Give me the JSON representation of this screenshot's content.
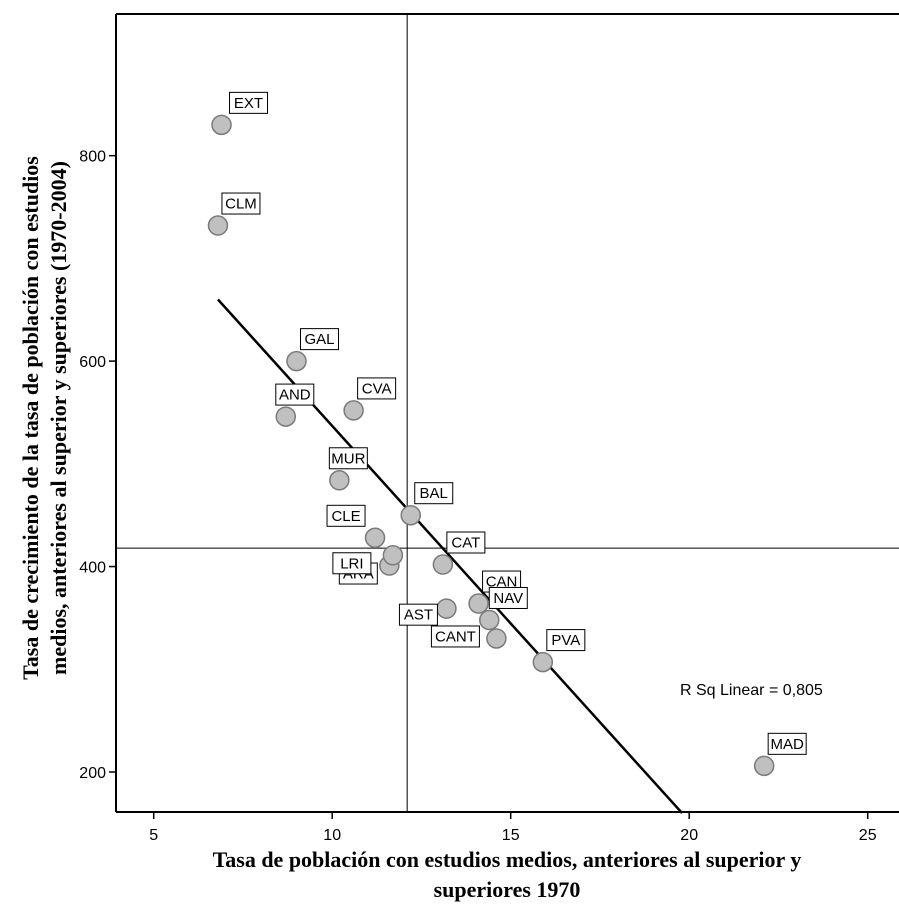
{
  "chart_data": {
    "type": "scatter",
    "xlabel": "Tasa de población con estudios medios, anteriores al superior y superiores 1970",
    "ylabel": "Tasa de crecimiento de la tasa de población con estudios medios, anteriores al superior y superiores (1970-2004)",
    "xlim": [
      4,
      25.8
    ],
    "ylim": [
      160,
      950
    ],
    "xticks": [
      "5",
      "10",
      "15",
      "20",
      "25"
    ],
    "yticks": [
      "200",
      "400",
      "600",
      "800"
    ],
    "grid": false,
    "reference_lines": {
      "x": 12.1,
      "y": 418
    },
    "fit_line": {
      "x1": 6.8,
      "y1": 660,
      "x2": 19.8,
      "y2": 160
    },
    "annotation": "R Sq Linear = 0,805",
    "points": [
      {
        "label": "EXT",
        "x": 6.9,
        "y": 830
      },
      {
        "label": "CLM",
        "x": 6.8,
        "y": 732
      },
      {
        "label": "GAL",
        "x": 9.0,
        "y": 600
      },
      {
        "label": "AND",
        "x": 8.7,
        "y": 546
      },
      {
        "label": "CVA",
        "x": 10.6,
        "y": 552
      },
      {
        "label": "MUR",
        "x": 10.2,
        "y": 484
      },
      {
        "label": "BAL",
        "x": 12.2,
        "y": 450
      },
      {
        "label": "CLE",
        "x": 11.2,
        "y": 428
      },
      {
        "label": "CAT",
        "x": 13.1,
        "y": 402
      },
      {
        "label": "ARA",
        "x": 11.6,
        "y": 401
      },
      {
        "label": "LRI",
        "x": 11.7,
        "y": 411
      },
      {
        "label": "AST",
        "x": 13.2,
        "y": 359
      },
      {
        "label": "CAN",
        "x": 14.1,
        "y": 364
      },
      {
        "label": "NAV",
        "x": 14.4,
        "y": 348
      },
      {
        "label": "CANT",
        "x": 14.6,
        "y": 330
      },
      {
        "label": "PVA",
        "x": 15.9,
        "y": 307
      },
      {
        "label": "MAD",
        "x": 22.1,
        "y": 206
      }
    ]
  }
}
